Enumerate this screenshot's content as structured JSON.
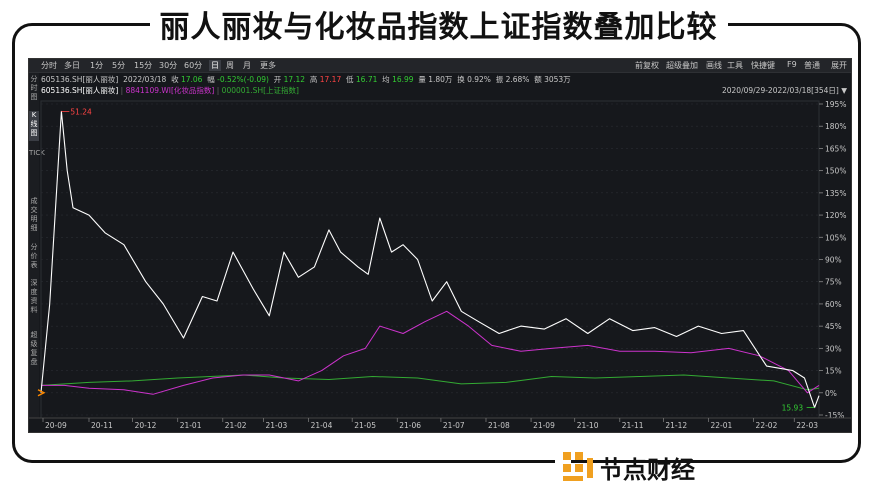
{
  "title": "丽人丽妆与化妆品指数上证指数叠加比较",
  "brand": "节点财经",
  "toolbar": {
    "left": [
      "分时",
      "多日",
      "1分",
      "5分",
      "15分",
      "30分",
      "60分",
      "日",
      "周",
      "月",
      "更多"
    ],
    "active": "日",
    "right": [
      "前复权",
      "超级叠加",
      "画线",
      "工具",
      "快捷键",
      "F9",
      "普通",
      "展开"
    ]
  },
  "sidebar": [
    "分时图",
    "K线图",
    "TICK",
    "成交明细",
    "分价表",
    "深度资料",
    "超级复盘"
  ],
  "info_bar": {
    "code": "605136.SH[丽人丽妆]",
    "date": "2022/03/18",
    "close_label": "收",
    "close": "17.06",
    "change_label": "幅",
    "change": "-0.52%(-0.09)",
    "open_label": "开",
    "open": "17.12",
    "high_label": "高",
    "high": "17.17",
    "low_label": "低",
    "low": "16.71",
    "avg_label": "均",
    "avg": "16.99",
    "vol_label": "量",
    "vol": "1.80万",
    "turnover_label": "换",
    "turnover": "0.92%",
    "amp_label": "振",
    "amp": "2.68%",
    "amount_label": "额",
    "amount": "3053万"
  },
  "legend_bar": {
    "items": [
      {
        "label": "605136.SH[丽人丽妆]",
        "color": "#ffffff"
      },
      {
        "label": "8841109.WI[化妆品指数]",
        "color": "#cc33cc"
      },
      {
        "label": "000001.SH[上证指数]",
        "color": "#33aa33"
      }
    ],
    "date_range": "2020/09/29-2022/03/18[354日]"
  },
  "colors": {
    "stock": "#ffffff",
    "cosmetics": "#cc33cc",
    "sse": "#33aa33",
    "max_label": "#ff4444",
    "min_label": "#33cc33"
  },
  "chart_data": {
    "type": "line",
    "x_ticks": [
      "20-09",
      "20-11",
      "20-12",
      "21-01",
      "21-02",
      "21-03",
      "21-04",
      "21-05",
      "21-06",
      "21-07",
      "21-08",
      "21-09",
      "21-10",
      "21-11",
      "21-12",
      "22-01",
      "22-02",
      "22-03"
    ],
    "x_range": [
      "2020-09-29",
      "2022-03-18"
    ],
    "y_ticks": [
      "195%",
      "180%",
      "165%",
      "150%",
      "135%",
      "120%",
      "105%",
      "90%",
      "75%",
      "60%",
      "45%",
      "30%",
      "15%",
      "0%",
      "-15%"
    ],
    "ylim": [
      -15,
      195
    ],
    "max_annotation": {
      "label": "51.24",
      "x": "2020-10-13",
      "y": 190
    },
    "min_annotation": {
      "label": "15.93",
      "x": "2022-03-15",
      "y": -10
    },
    "series": [
      {
        "name": "605136.SH[丽人丽妆]",
        "color": "#ffffff",
        "x": [
          "2020-09-29",
          "2020-10-05",
          "2020-10-13",
          "2020-10-17",
          "2020-10-21",
          "2020-11-01",
          "2020-11-12",
          "2020-11-25",
          "2020-12-10",
          "2020-12-22",
          "2021-01-05",
          "2021-01-18",
          "2021-01-28",
          "2021-02-08",
          "2021-02-22",
          "2021-03-05",
          "2021-03-15",
          "2021-03-25",
          "2021-04-05",
          "2021-04-15",
          "2021-04-23",
          "2021-05-05",
          "2021-05-12",
          "2021-05-20",
          "2021-05-28",
          "2021-06-05",
          "2021-06-15",
          "2021-06-25",
          "2021-07-05",
          "2021-07-15",
          "2021-07-27",
          "2021-08-10",
          "2021-08-25",
          "2021-09-10",
          "2021-09-25",
          "2021-10-10",
          "2021-10-25",
          "2021-11-10",
          "2021-11-25",
          "2021-12-10",
          "2021-12-25",
          "2022-01-10",
          "2022-01-25",
          "2022-02-10",
          "2022-02-28",
          "2022-03-08",
          "2022-03-15",
          "2022-03-18"
        ],
        "y": [
          0,
          60,
          190,
          150,
          125,
          120,
          108,
          100,
          75,
          60,
          37,
          65,
          62,
          95,
          70,
          52,
          95,
          78,
          85,
          110,
          95,
          85,
          80,
          118,
          95,
          100,
          90,
          62,
          75,
          55,
          48,
          40,
          45,
          43,
          50,
          40,
          50,
          42,
          44,
          38,
          45,
          40,
          42,
          18,
          15,
          10,
          -10,
          -2
        ]
      },
      {
        "name": "8841109.WI[化妆品指数]",
        "color": "#cc33cc",
        "x": [
          "2020-09-29",
          "2020-10-15",
          "2020-11-01",
          "2020-11-25",
          "2020-12-15",
          "2021-01-05",
          "2021-01-25",
          "2021-02-15",
          "2021-03-05",
          "2021-03-25",
          "2021-04-10",
          "2021-04-25",
          "2021-05-10",
          "2021-05-20",
          "2021-06-05",
          "2021-06-20",
          "2021-07-05",
          "2021-07-20",
          "2021-08-05",
          "2021-08-25",
          "2021-09-15",
          "2021-10-10",
          "2021-11-01",
          "2021-11-25",
          "2021-12-20",
          "2022-01-15",
          "2022-02-05",
          "2022-02-25",
          "2022-03-10",
          "2022-03-18"
        ],
        "y": [
          5,
          5,
          3,
          2,
          -1,
          5,
          10,
          12,
          12,
          8,
          15,
          25,
          30,
          45,
          40,
          48,
          55,
          45,
          32,
          28,
          30,
          32,
          28,
          28,
          27,
          30,
          25,
          15,
          0,
          5
        ]
      },
      {
        "name": "000001.SH[上证指数]",
        "color": "#33aa33",
        "x": [
          "2020-09-29",
          "2020-11-01",
          "2020-12-01",
          "2021-01-01",
          "2021-02-15",
          "2021-03-15",
          "2021-04-15",
          "2021-05-15",
          "2021-06-15",
          "2021-07-15",
          "2021-08-15",
          "2021-09-15",
          "2021-10-15",
          "2021-11-15",
          "2021-12-15",
          "2022-01-15",
          "2022-02-15",
          "2022-03-10",
          "2022-03-18"
        ],
        "y": [
          5,
          7,
          8,
          10,
          12,
          10,
          9,
          11,
          10,
          6,
          7,
          11,
          10,
          11,
          12,
          10,
          8,
          2,
          3
        ]
      }
    ]
  }
}
